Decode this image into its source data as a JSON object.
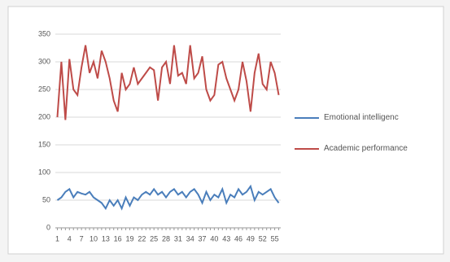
{
  "chart_data": {
    "type": "line",
    "categories": [
      "1",
      null,
      null,
      "4",
      null,
      null,
      "7",
      null,
      null,
      "10",
      null,
      null,
      "13",
      null,
      null,
      "16",
      null,
      null,
      "19",
      null,
      null,
      "22",
      null,
      null,
      "25",
      null,
      null,
      "28",
      null,
      null,
      "31",
      null,
      null,
      "34",
      null,
      null,
      "37",
      null,
      null,
      "40",
      null,
      null,
      "43",
      null,
      null,
      "46",
      null,
      null,
      "49",
      null,
      null,
      "52",
      null,
      null,
      "55",
      null
    ],
    "series": [
      {
        "name": "Emotional intelligenc",
        "color": "#4a7ebb",
        "values": [
          50,
          55,
          65,
          70,
          55,
          65,
          62,
          60,
          65,
          55,
          50,
          45,
          35,
          50,
          40,
          50,
          35,
          55,
          40,
          55,
          50,
          60,
          65,
          60,
          70,
          60,
          65,
          55,
          65,
          70,
          60,
          65,
          55,
          65,
          70,
          60,
          45,
          65,
          50,
          60,
          55,
          70,
          45,
          60,
          55,
          70,
          60,
          65,
          75,
          50,
          65,
          60,
          65,
          70,
          55,
          45
        ]
      },
      {
        "name": "Academic performance",
        "color": "#be4b48",
        "values": [
          200,
          300,
          195,
          305,
          250,
          240,
          290,
          330,
          280,
          300,
          270,
          320,
          300,
          270,
          230,
          210,
          280,
          250,
          260,
          290,
          260,
          270,
          280,
          290,
          285,
          230,
          290,
          300,
          260,
          330,
          275,
          280,
          260,
          330,
          270,
          280,
          310,
          250,
          230,
          240,
          295,
          300,
          270,
          250,
          230,
          250,
          300,
          265,
          210,
          280,
          315,
          260,
          250,
          300,
          280,
          240
        ]
      }
    ],
    "ylim": [
      0,
      350
    ],
    "yticks": [
      0,
      50,
      100,
      150,
      200,
      250,
      300,
      350
    ],
    "grid": true,
    "legend": "right"
  }
}
